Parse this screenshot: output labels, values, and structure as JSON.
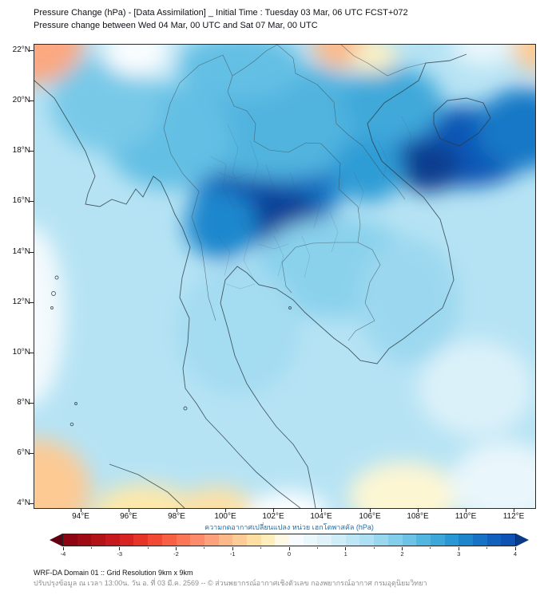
{
  "title": {
    "line1": "Pressure Change (hPa) - [Data Assimilation] _ Initial Time : Tuesday 03 Mar, 06 UTC FCST+072",
    "line2": "Pressure change between Wed 04 Mar, 00 UTC and Sat 07 Mar, 00 UTC"
  },
  "map": {
    "extent": {
      "lon_min": 92.05,
      "lon_max": 112.85,
      "lat_min": 3.85,
      "lat_max": 22.25
    },
    "lat_ticks": [
      {
        "v": 22,
        "label": "22°N"
      },
      {
        "v": 20,
        "label": "20°N"
      },
      {
        "v": 18,
        "label": "18°N"
      },
      {
        "v": 16,
        "label": "16°N"
      },
      {
        "v": 14,
        "label": "14°N"
      },
      {
        "v": 12,
        "label": "12°N"
      },
      {
        "v": 10,
        "label": "10°N"
      },
      {
        "v": 8,
        "label": "8°N"
      },
      {
        "v": 6,
        "label": "6°N"
      },
      {
        "v": 4,
        "label": "4°N"
      }
    ],
    "lon_ticks": [
      {
        "v": 94,
        "label": "94°E"
      },
      {
        "v": 96,
        "label": "96°E"
      },
      {
        "v": 98,
        "label": "98°E"
      },
      {
        "v": 100,
        "label": "100°E"
      },
      {
        "v": 102,
        "label": "102°E"
      },
      {
        "v": 104,
        "label": "104°E"
      },
      {
        "v": 106,
        "label": "106°E"
      },
      {
        "v": 108,
        "label": "108°E"
      },
      {
        "v": 110,
        "label": "110°E"
      },
      {
        "v": 112,
        "label": "112°E"
      }
    ]
  },
  "field": {
    "units": "hPa",
    "base_value": 1.25,
    "features": [
      {
        "lon": 101.7,
        "lat": 16.6,
        "rx": 3.1,
        "ry": 2.3,
        "v": 3.3
      },
      {
        "lon": 102.5,
        "lat": 15.3,
        "rx": 1.5,
        "ry": 1.2,
        "v": 4.3
      },
      {
        "lon": 100.9,
        "lat": 17.0,
        "rx": 1.4,
        "ry": 1.1,
        "v": 4.1
      },
      {
        "lon": 103.4,
        "lat": 17.9,
        "rx": 1.7,
        "ry": 1.3,
        "v": 3.7
      },
      {
        "lon": 99.8,
        "lat": 15.1,
        "rx": 1.5,
        "ry": 1.4,
        "v": 3.1
      },
      {
        "lon": 102.0,
        "lat": 19.2,
        "rx": 4.8,
        "ry": 2.3,
        "v": 2.4
      },
      {
        "lon": 97.6,
        "lat": 18.6,
        "rx": 2.6,
        "ry": 2.1,
        "v": 2.2
      },
      {
        "lon": 95.0,
        "lat": 19.9,
        "rx": 2.3,
        "ry": 1.9,
        "v": 2.0
      },
      {
        "lon": 100.6,
        "lat": 21.4,
        "rx": 2.6,
        "ry": 1.3,
        "v": 2.2
      },
      {
        "lon": 109.9,
        "lat": 18.2,
        "rx": 2.9,
        "ry": 1.6,
        "v": 3.8
      },
      {
        "lon": 108.4,
        "lat": 17.4,
        "rx": 1.3,
        "ry": 1.0,
        "v": 4.4
      },
      {
        "lon": 112.4,
        "lat": 18.9,
        "rx": 2.0,
        "ry": 1.6,
        "v": 3.3
      },
      {
        "lon": 106.9,
        "lat": 19.9,
        "rx": 2.1,
        "ry": 1.5,
        "v": 2.6
      },
      {
        "lon": 105.9,
        "lat": 17.3,
        "rx": 1.5,
        "ry": 1.3,
        "v": 2.8
      },
      {
        "lon": 104.6,
        "lat": 13.4,
        "rx": 3.4,
        "ry": 2.0,
        "v": 1.8
      },
      {
        "lon": 100.5,
        "lat": 10.9,
        "rx": 2.6,
        "ry": 2.6,
        "v": 1.5
      },
      {
        "lon": 107.6,
        "lat": 12.1,
        "rx": 2.1,
        "ry": 2.5,
        "v": 1.6
      },
      {
        "lon": 92.0,
        "lat": 22.4,
        "rx": 2.1,
        "ry": 1.7,
        "v": -1.3
      },
      {
        "lon": 96.3,
        "lat": 22.0,
        "rx": 1.4,
        "ry": 1.0,
        "v": 0.1
      },
      {
        "lon": 104.8,
        "lat": 22.2,
        "rx": 1.2,
        "ry": 0.9,
        "v": -1.1
      },
      {
        "lon": 106.2,
        "lat": 21.8,
        "rx": 0.9,
        "ry": 0.7,
        "v": -0.3
      },
      {
        "lon": 113.0,
        "lat": 22.2,
        "rx": 1.2,
        "ry": 1.0,
        "v": -0.9
      },
      {
        "lon": 110.7,
        "lat": 22.2,
        "rx": 1.3,
        "ry": 0.8,
        "v": 0.4
      },
      {
        "lon": 91.8,
        "lat": 11.5,
        "rx": 1.5,
        "ry": 3.6,
        "v": 0.2
      },
      {
        "lon": 92.1,
        "lat": 4.6,
        "rx": 2.3,
        "ry": 2.0,
        "v": -0.9
      },
      {
        "lon": 96.6,
        "lat": 3.7,
        "rx": 2.1,
        "ry": 1.1,
        "v": -0.5
      },
      {
        "lon": 99.6,
        "lat": 3.8,
        "rx": 1.6,
        "ry": 0.9,
        "v": -0.6
      },
      {
        "lon": 102.6,
        "lat": 3.6,
        "rx": 1.7,
        "ry": 0.9,
        "v": 0.0
      },
      {
        "lon": 107.4,
        "lat": 4.3,
        "rx": 2.3,
        "ry": 1.4,
        "v": -0.2
      },
      {
        "lon": 111.6,
        "lat": 4.8,
        "rx": 2.3,
        "ry": 1.7,
        "v": 0.4
      },
      {
        "lon": 110.4,
        "lat": 8.6,
        "rx": 2.4,
        "ry": 1.9,
        "v": 0.7
      }
    ]
  },
  "scale": [
    {
      "v": -4.5,
      "c": "#61000e"
    },
    {
      "v": -4.0,
      "c": "#850012"
    },
    {
      "v": -3.5,
      "c": "#a80f15"
    },
    {
      "v": -3.0,
      "c": "#cf1c1f"
    },
    {
      "v": -2.5,
      "c": "#ee3d2b"
    },
    {
      "v": -2.0,
      "c": "#fb6b4b"
    },
    {
      "v": -1.5,
      "c": "#fc9676"
    },
    {
      "v": -1.0,
      "c": "#fdc38f"
    },
    {
      "v": -0.5,
      "c": "#fee8a9"
    },
    {
      "v": -0.2,
      "c": "#fdf6d3"
    },
    {
      "v": 0.0,
      "c": "#ffffff"
    },
    {
      "v": 0.3,
      "c": "#eef8fc"
    },
    {
      "v": 0.7,
      "c": "#dbf1f9"
    },
    {
      "v": 1.0,
      "c": "#c7eaf6"
    },
    {
      "v": 1.5,
      "c": "#a4dcf1"
    },
    {
      "v": 2.0,
      "c": "#78c9e8"
    },
    {
      "v": 2.5,
      "c": "#47afdd"
    },
    {
      "v": 3.0,
      "c": "#1f8fd0"
    },
    {
      "v": 3.5,
      "c": "#1268c0"
    },
    {
      "v": 4.0,
      "c": "#0c4cae"
    },
    {
      "v": 4.5,
      "c": "#083a86"
    }
  ],
  "colorbar": {
    "label": "ความกดอากาศเปลี่ยนแปลง หน่วย เฮกโตพาสคัล (hPa)",
    "min": -4,
    "max": 4,
    "segment_step": 0.25,
    "minor_step": 0.5,
    "tick_values": [
      -4,
      -3,
      -2,
      -1,
      0,
      1,
      2,
      3,
      4
    ]
  },
  "footer": {
    "line1": "WRF-DA Domain 01 :: Grid Resolution 9km x 9km",
    "line2": "ปรับปรุงข้อมูล ณ เวลา 13:00น. วัน อ. ที่ 03 มี.ค. 2569 -- © ส่วนพยากรณ์อากาศเชิงตัวเลข กองพยากรณ์อากาศ กรมอุตุนิยมวิทยา"
  }
}
